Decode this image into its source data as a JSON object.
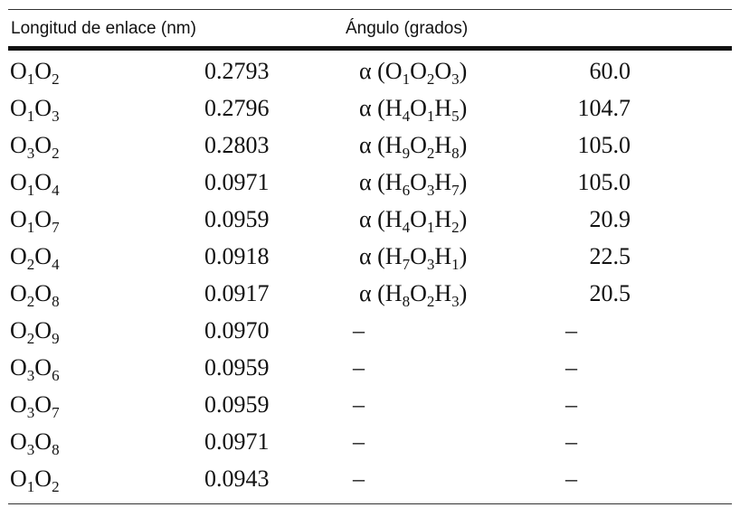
{
  "headers": {
    "bond_length": "Longitud de enlace (nm)",
    "angle": "Ángulo (grados)"
  },
  "rows": [
    {
      "bond": "O1O2",
      "length": "0.2793",
      "angle_label": "α (O1O2O3)",
      "angle_value": "60.0"
    },
    {
      "bond": "O1O3",
      "length": "0.2796",
      "angle_label": "α (H4O1H5)",
      "angle_value": "104.7"
    },
    {
      "bond": "O3O2",
      "length": "0.2803",
      "angle_label": "α (H9O2H8)",
      "angle_value": "105.0"
    },
    {
      "bond": "O1O4",
      "length": "0.0971",
      "angle_label": "α (H6O3H7)",
      "angle_value": "105.0"
    },
    {
      "bond": "O1O7",
      "length": "0.0959",
      "angle_label": "α (H4O1H2)",
      "angle_value": "20.9"
    },
    {
      "bond": "O2O4",
      "length": "0.0918",
      "angle_label": "α (H7O3H1)",
      "angle_value": "22.5"
    },
    {
      "bond": "O2O8",
      "length": "0.0917",
      "angle_label": "α (H8O2H3)",
      "angle_value": "20.5"
    },
    {
      "bond": "O2O9",
      "length": "0.0970",
      "angle_label": "–",
      "angle_value": "–"
    },
    {
      "bond": "O3O6",
      "length": "0.0959",
      "angle_label": "–",
      "angle_value": "–"
    },
    {
      "bond": "O3O7",
      "length": "0.0959",
      "angle_label": "–",
      "angle_value": "–"
    },
    {
      "bond": "O3O8",
      "length": "0.0971",
      "angle_label": "–",
      "angle_value": "–"
    },
    {
      "bond": "O1O2",
      "length": "0.0943",
      "angle_label": "–",
      "angle_value": "–"
    }
  ]
}
